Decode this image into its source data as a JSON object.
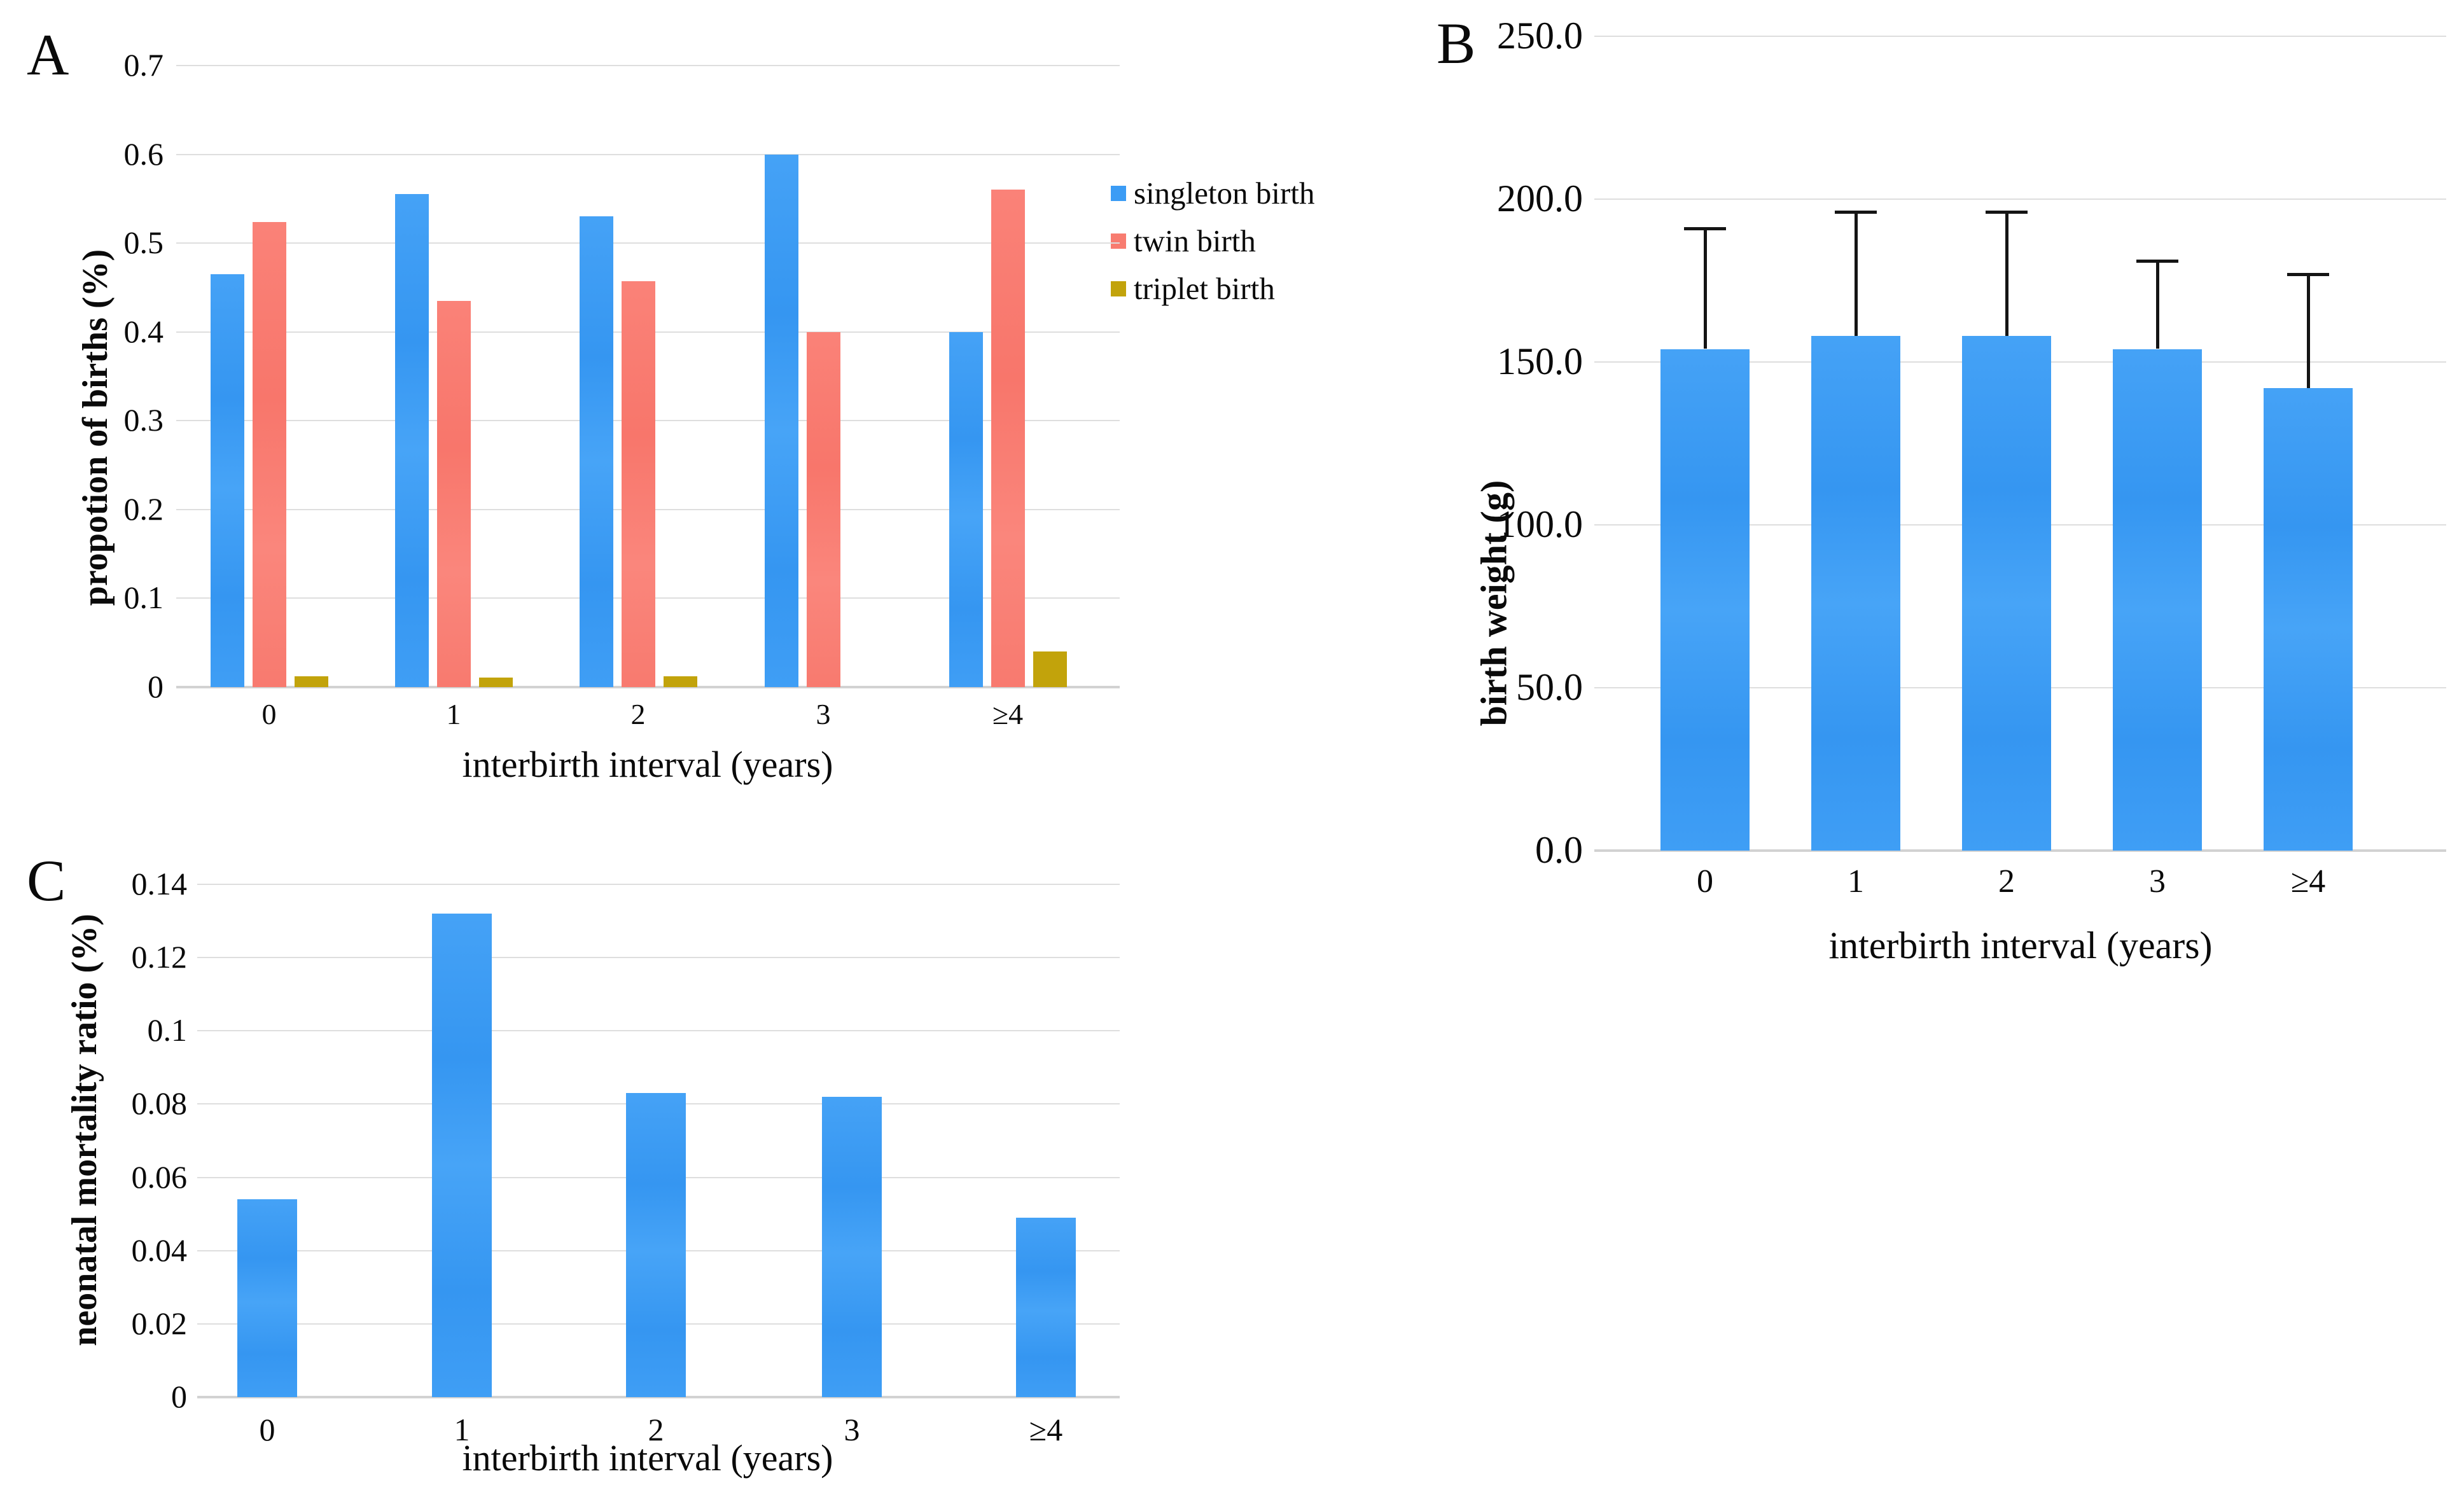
{
  "figure": {
    "background": "#ffffff",
    "panel_letters": [
      "A",
      "B",
      "C"
    ]
  },
  "colors": {
    "singleton_blue": "#3b9cf5",
    "twin_red": "#f87c70",
    "triplet_olive": "#c2a30b",
    "gridline": "#dedede",
    "axis_line": "#d2d2d2",
    "error_bar": "#141414",
    "text": "#0a0a0a"
  },
  "chart_data": [
    {
      "id": "A",
      "panel_label": "A",
      "type": "bar",
      "categories": [
        "0",
        "1",
        "2",
        "3",
        "≥4"
      ],
      "series": [
        {
          "name": "singleton birth",
          "color_key": "blue",
          "values": [
            0.465,
            0.555,
            0.53,
            0.6,
            0.4
          ]
        },
        {
          "name": "twin birth",
          "color_key": "red",
          "values": [
            0.524,
            0.435,
            0.457,
            0.4,
            0.56
          ]
        },
        {
          "name": "triplet birth",
          "color_key": "olive",
          "values": [
            0.012,
            0.011,
            0.012,
            0,
            0.04
          ]
        }
      ],
      "title": "",
      "xlabel": "interbirth interval (years)",
      "ylabel": "propotion of births (%)",
      "ylim": [
        0,
        0.7
      ],
      "ytick_step": 0.1,
      "ytick_labels": [
        "0.7",
        "0.6",
        "0.5",
        "0.4",
        "0.3",
        "0.2",
        "0.1",
        "0"
      ],
      "grid": true,
      "legend_position": "right"
    },
    {
      "id": "B",
      "panel_label": "B",
      "type": "bar",
      "categories": [
        "0",
        "1",
        "2",
        "3",
        "≥4"
      ],
      "series": [
        {
          "name": "birth weight",
          "color_key": "blue",
          "values": [
            154,
            158,
            158,
            154,
            142
          ],
          "error_top": [
            191,
            196,
            196,
            181,
            177
          ]
        }
      ],
      "title": "",
      "xlabel": "interbirth interval (years)",
      "ylabel": "birth weight (g)",
      "ylim": [
        0,
        250
      ],
      "ytick_step": 50,
      "ytick_labels": [
        "250.0",
        "200.0",
        "150.0",
        "100.0",
        "50.0",
        "0.0"
      ],
      "grid": true,
      "legend_position": "none"
    },
    {
      "id": "C",
      "panel_label": "C",
      "type": "bar",
      "categories": [
        "0",
        "1",
        "2",
        "3",
        "≥4"
      ],
      "series": [
        {
          "name": "neonatal mortality ratio",
          "color_key": "blue",
          "values": [
            0.054,
            0.132,
            0.083,
            0.082,
            0.049
          ]
        }
      ],
      "title": "",
      "xlabel": "interbirth interval (years)",
      "ylabel": "neonatal mortality ratio (%)",
      "ylim": [
        0,
        0.14
      ],
      "ytick_step": 0.02,
      "ytick_labels": [
        "0.14",
        "0.12",
        "0.1",
        "0.08",
        "0.06",
        "0.04",
        "0.02",
        "0"
      ],
      "grid": true,
      "legend_position": "none"
    }
  ]
}
